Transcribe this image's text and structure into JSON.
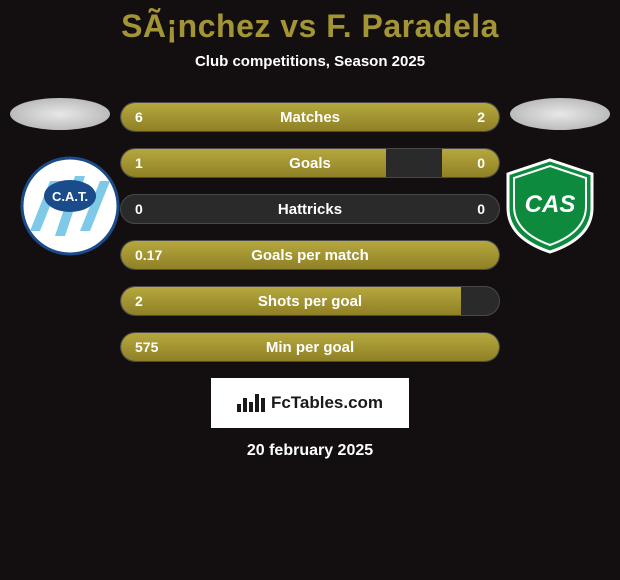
{
  "title": "SÃ¡nchez vs F. Paradela",
  "subtitle": "Club competitions, Season 2025",
  "date": "20 february 2025",
  "branding": "FcTables.com",
  "colors": {
    "bar_fill": "#a39535",
    "bar_bg": "#2a2a2a",
    "accent": "#a39535"
  },
  "badge_left": {
    "text": "C.A.T.",
    "bg": "#ffffff",
    "stripe": "#7ec8e8",
    "border": "#1a4c8c"
  },
  "badge_right": {
    "text": "CAS",
    "bg": "#0e8a3e",
    "border": "#ffffff"
  },
  "stats": [
    {
      "label": "Matches",
      "left_val": "6",
      "right_val": "2",
      "left_pct": 75,
      "right_pct": 25
    },
    {
      "label": "Goals",
      "left_val": "1",
      "right_val": "0",
      "left_pct": 70,
      "right_pct": 15
    },
    {
      "label": "Hattricks",
      "left_val": "0",
      "right_val": "0",
      "left_pct": 0,
      "right_pct": 0
    },
    {
      "label": "Goals per match",
      "left_val": "0.17",
      "right_val": "",
      "left_pct": 100,
      "right_pct": 0
    },
    {
      "label": "Shots per goal",
      "left_val": "2",
      "right_val": "",
      "left_pct": 90,
      "right_pct": 0
    },
    {
      "label": "Min per goal",
      "left_val": "575",
      "right_val": "",
      "left_pct": 100,
      "right_pct": 0
    }
  ]
}
